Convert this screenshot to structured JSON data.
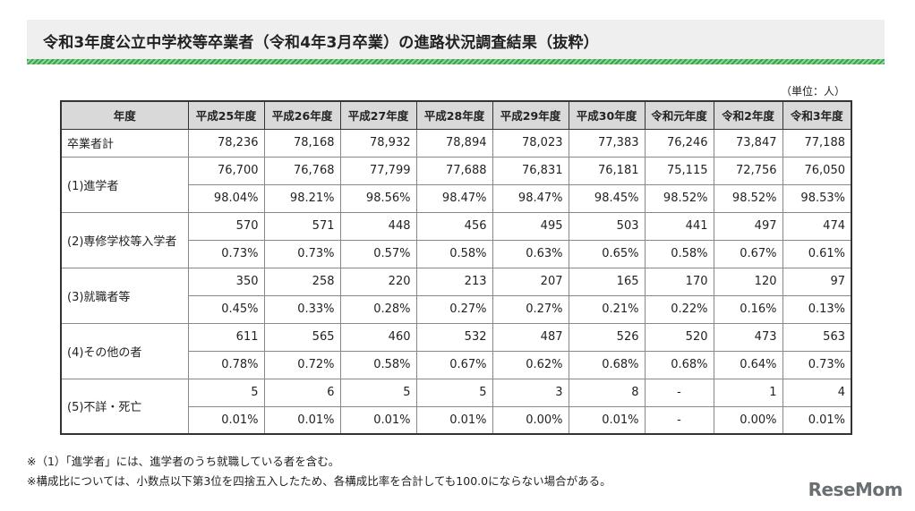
{
  "title": "令和3年度公立中学校等卒業者（令和4年3月卒業）の進路状況調査結果（抜粋）",
  "unit": "（単位：人）",
  "table": {
    "header": [
      "年度",
      "平成25年度",
      "平成26年度",
      "平成27年度",
      "平成28年度",
      "平成29年度",
      "平成30年度",
      "令和元年度",
      "令和2年度",
      "令和3年度"
    ],
    "total": {
      "label": "卒業者計",
      "values": [
        "78,236",
        "78,168",
        "78,932",
        "78,894",
        "78,023",
        "77,383",
        "76,246",
        "73,847",
        "77,188"
      ]
    },
    "groups": [
      {
        "label": "(1)進学者",
        "counts": [
          "76,700",
          "76,768",
          "77,799",
          "77,688",
          "76,831",
          "76,181",
          "75,115",
          "72,756",
          "76,050"
        ],
        "rates": [
          "98.04%",
          "98.21%",
          "98.56%",
          "98.47%",
          "98.47%",
          "98.45%",
          "98.52%",
          "98.52%",
          "98.53%"
        ]
      },
      {
        "label": "(2)専修学校等入学者",
        "counts": [
          "570",
          "571",
          "448",
          "456",
          "495",
          "503",
          "441",
          "497",
          "474"
        ],
        "rates": [
          "0.73%",
          "0.73%",
          "0.57%",
          "0.58%",
          "0.63%",
          "0.65%",
          "0.58%",
          "0.67%",
          "0.61%"
        ]
      },
      {
        "label": "(3)就職者等",
        "counts": [
          "350",
          "258",
          "220",
          "213",
          "207",
          "165",
          "170",
          "120",
          "97"
        ],
        "rates": [
          "0.45%",
          "0.33%",
          "0.28%",
          "0.27%",
          "0.27%",
          "0.21%",
          "0.22%",
          "0.16%",
          "0.13%"
        ]
      },
      {
        "label": "(4)その他の者",
        "counts": [
          "611",
          "565",
          "460",
          "532",
          "487",
          "526",
          "520",
          "473",
          "563"
        ],
        "rates": [
          "0.78%",
          "0.72%",
          "0.58%",
          "0.67%",
          "0.62%",
          "0.68%",
          "0.68%",
          "0.64%",
          "0.73%"
        ]
      },
      {
        "label": "(5)不詳・死亡",
        "counts": [
          "5",
          "6",
          "5",
          "5",
          "3",
          "8",
          "-",
          "1",
          "4"
        ],
        "rates": [
          "0.01%",
          "0.01%",
          "0.01%",
          "0.01%",
          "0.00%",
          "0.01%",
          "-",
          "0.00%",
          "0.01%"
        ]
      }
    ]
  },
  "notes": [
    "※（1）「進学者」には、進学者のうち就職している者を含む。",
    "※構成比については、小数点以下第3位を四捨五入したため、各構成比率を合計しても100.0にならない場合がある。"
  ],
  "logo": "ReseMom",
  "colors": {
    "accent": "#3aa64a",
    "header_bg": "#d9d9d9",
    "title_bg": "#efefef"
  }
}
